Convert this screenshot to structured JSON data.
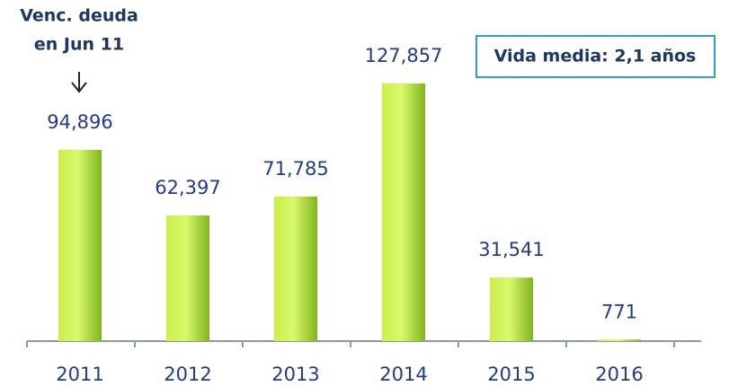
{
  "chart_data": {
    "type": "bar",
    "categories": [
      "2011",
      "2012",
      "2013",
      "2014",
      "2015",
      "2016"
    ],
    "values": [
      94896,
      62397,
      71785,
      127857,
      31541,
      771
    ],
    "value_labels": [
      "94,896",
      "62,397",
      "71,785",
      "127,857",
      "31,541",
      "771"
    ],
    "color": "#a6d82c",
    "annotation": [
      "Venc. deuda",
      "en Jun 11"
    ],
    "note": "Vida media: 2,1 años"
  }
}
